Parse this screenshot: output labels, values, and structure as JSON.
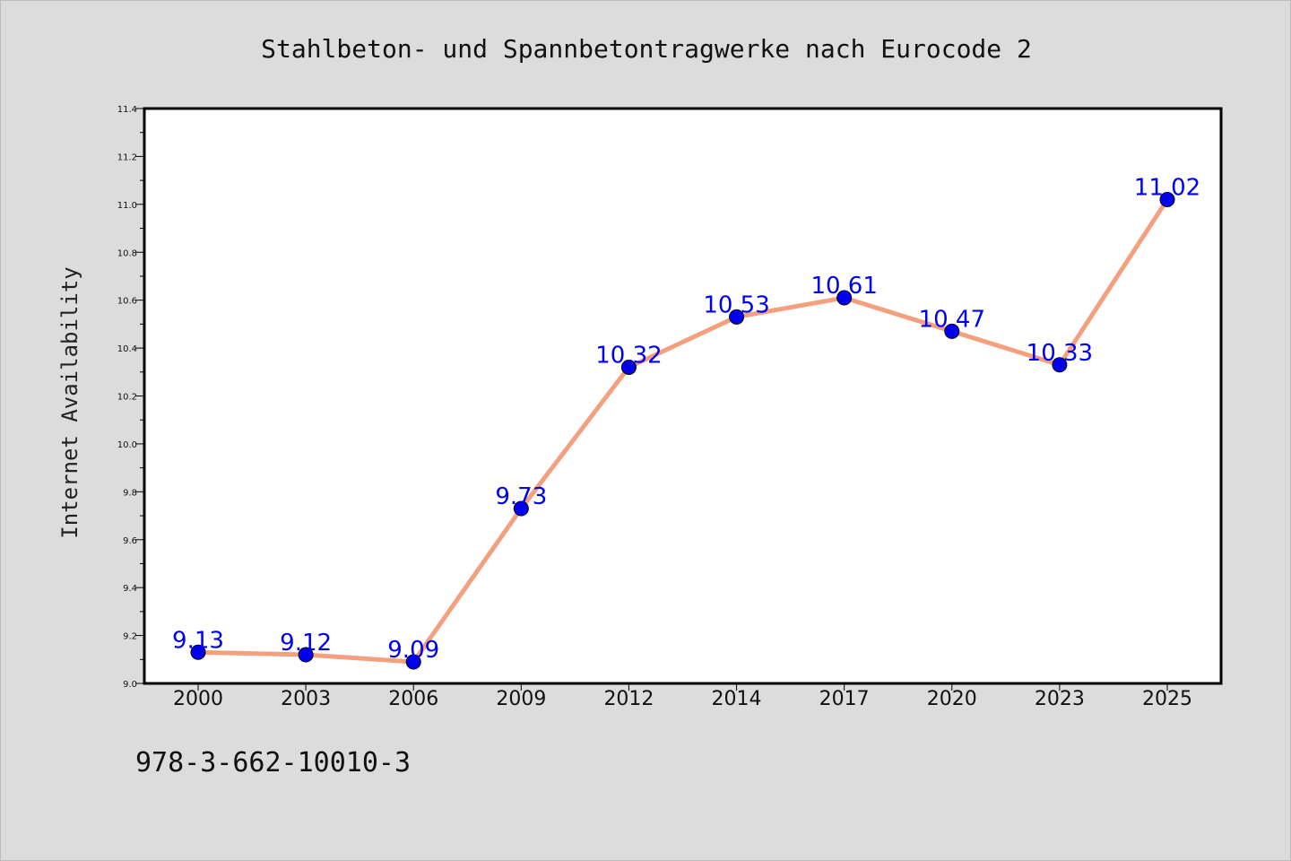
{
  "chart_data": {
    "type": "line",
    "title": "Stahlbeton- und Spannbetontragwerke nach Eurocode 2",
    "xlabel": "",
    "ylabel": "Internet Availability",
    "categories": [
      "2000",
      "2003",
      "2006",
      "2009",
      "2012",
      "2014",
      "2017",
      "2020",
      "2023",
      "2025"
    ],
    "series": [
      {
        "values": [
          9.13,
          9.12,
          9.09,
          9.73,
          10.32,
          10.53,
          10.61,
          10.47,
          10.33,
          11.02
        ]
      }
    ],
    "data_labels": [
      "9.13",
      "9.12",
      "9.09",
      "9.73",
      "10.32",
      "10.53",
      "10.61",
      "10.47",
      "10.33",
      "11.02"
    ],
    "ylim": [
      9.0,
      11.4
    ],
    "yticks": [
      "9.0",
      "9.2",
      "9.4",
      "9.6",
      "9.8",
      "10.0",
      "10.2",
      "10.4",
      "10.6",
      "10.8",
      "11.0",
      "11.2",
      "11.4"
    ],
    "grid": false,
    "line_color": "#f4a07f",
    "marker_color": "#0000ee",
    "label_color": "#0000ee"
  },
  "footer": {
    "isbn": "978-3-662-10010-3"
  }
}
